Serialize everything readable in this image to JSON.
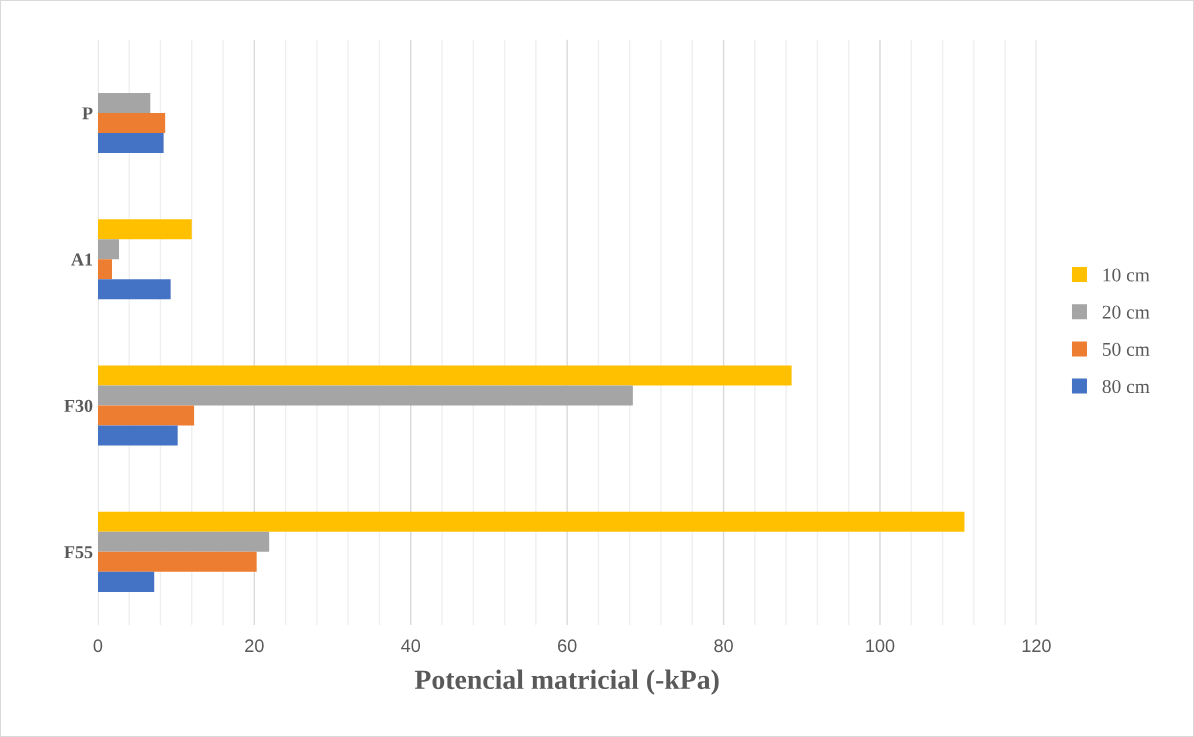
{
  "chart_data": {
    "type": "bar",
    "orientation": "horizontal",
    "xlabel": "Potencial matricial (-kPa)",
    "categories": [
      "P",
      "A1",
      "F30",
      "F55"
    ],
    "series": [
      {
        "name": "10 cm",
        "color": "#ffc000",
        "values": [
          null,
          12.0,
          88.7,
          110.8
        ]
      },
      {
        "name": "20 cm",
        "color": "#a5a5a5",
        "values": [
          6.7,
          2.7,
          68.4,
          21.9
        ]
      },
      {
        "name": "50 cm",
        "color": "#ed7d31",
        "values": [
          8.6,
          1.8,
          12.3,
          20.3
        ]
      },
      {
        "name": "80 cm",
        "color": "#4472c4",
        "values": [
          8.4,
          9.3,
          10.2,
          7.2
        ]
      }
    ],
    "xlim": [
      0,
      120
    ],
    "xticks": [
      0,
      {
        "value": 4,
        "label": null
      },
      {
        "value": 8,
        "label": null
      },
      {
        "value": 12,
        "label": null
      },
      {
        "value": 16,
        "label": null
      },
      20,
      {
        "value": 24,
        "label": null
      },
      {
        "value": 28,
        "label": null
      },
      {
        "value": 32,
        "label": null
      },
      {
        "value": 36,
        "label": null
      },
      40,
      {
        "value": 44,
        "label": null
      },
      {
        "value": 48,
        "label": null
      },
      {
        "value": 52,
        "label": null
      },
      {
        "value": 56,
        "label": null
      },
      60,
      {
        "value": 64,
        "label": null
      },
      {
        "value": 68,
        "label": null
      },
      {
        "value": 72,
        "label": null
      },
      {
        "value": 76,
        "label": null
      },
      80,
      {
        "value": 84,
        "label": null
      },
      {
        "value": 88,
        "label": null
      },
      {
        "value": 92,
        "label": null
      },
      {
        "value": 96,
        "label": null
      },
      100,
      {
        "value": 104,
        "label": null
      },
      {
        "value": 108,
        "label": null
      },
      {
        "value": 112,
        "label": null
      },
      {
        "value": 116,
        "label": null
      },
      120
    ],
    "grid": "x",
    "legend": "right"
  }
}
